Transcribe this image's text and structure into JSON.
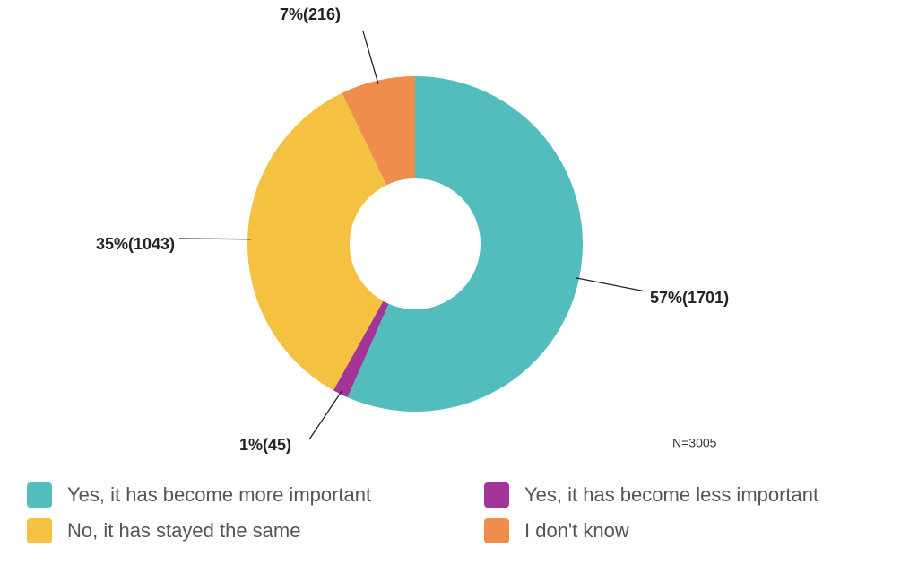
{
  "chart_data": {
    "type": "donut",
    "categories": [
      "Yes, it has become more important",
      "Yes, it has become less important",
      "No, it has stayed the same",
      "I don't know"
    ],
    "values": [
      1701,
      45,
      1043,
      216
    ],
    "value_labels": [
      "57%(1701)",
      "1%(45)",
      "35%(1043)",
      "7%(216)"
    ],
    "colors": [
      "#53bcbc",
      "#a23597",
      "#f4c141",
      "#ee8d4c"
    ],
    "annotation": "N=3005"
  }
}
